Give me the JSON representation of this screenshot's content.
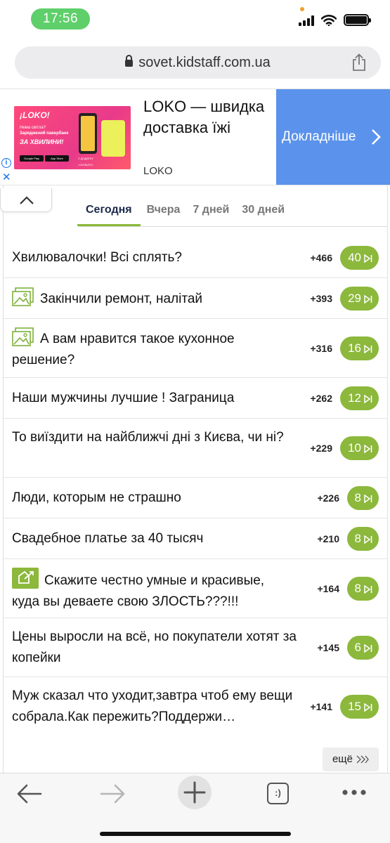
{
  "status_bar": {
    "time": "17:56"
  },
  "url_bar": {
    "url": "sovet.kidstaff.com.ua"
  },
  "ad": {
    "image": {
      "brand": "¡LOKO!",
      "line1": "Нема світла?",
      "line2": "Заряджений павербанк",
      "line3": "ЗА ХВИЛИНИ!",
      "badge1": "Google Play",
      "badge2": "App Store",
      "badge3": "У ДОДАТКУ «СИЛЬПО»"
    },
    "title": "LOKO — швидка доставка їжі",
    "advertiser": "LOKO",
    "cta": "Докладніше",
    "colors": {
      "cta_bg": "#5b93ec"
    }
  },
  "tabs": [
    {
      "label": "Сегодня",
      "active": true
    },
    {
      "label": "Вчера",
      "active": false
    },
    {
      "label": "7 дней",
      "active": false
    },
    {
      "label": "30 дней",
      "active": false
    }
  ],
  "topics": [
    {
      "title": "Хвилювалочки! Всі сплять?",
      "score": "+466",
      "replies": "40",
      "icon": ""
    },
    {
      "title": "Закінчили ремонт, налітай",
      "score": "+393",
      "replies": "29",
      "icon": "image-icon"
    },
    {
      "title": "А вам нравится такое кухонное решение?",
      "score": "+316",
      "replies": "16",
      "icon": "image-icon"
    },
    {
      "title": "Наши мужчины лучшие ! Заграница",
      "score": "+262",
      "replies": "12",
      "icon": ""
    },
    {
      "title": "То виїздити на найближчі дні з Києва, чи ні?",
      "score": "+229",
      "replies": "10",
      "icon": ""
    },
    {
      "title": "Люди, которым не страшно",
      "score": "+226",
      "replies": "8",
      "icon": ""
    },
    {
      "title": "Свадебное платье за 40 тысяч",
      "score": "+210",
      "replies": "8",
      "icon": ""
    },
    {
      "title": "Скажите честно умные и красивые, куда вы деваете свою ЗЛОСТЬ???!!!",
      "score": "+164",
      "replies": "8",
      "icon": "poll-icon"
    },
    {
      "title": "Цены выросли на всё, но покупатели хотят за копейки",
      "score": "+145",
      "replies": "6",
      "icon": ""
    },
    {
      "title": "Муж сказал что уходит,завтра чтоб ему вещи собрала.Как пережить?Поддержи…",
      "score": "+141",
      "replies": "15",
      "icon": ""
    }
  ],
  "more": {
    "label": "ещё"
  },
  "colors": {
    "accent": "#8cb83c",
    "tab_active": "#1c2a4a",
    "time_pill": "#5ecf6a"
  },
  "toolbar": {
    "tabs_icon_glyph": ":)"
  }
}
